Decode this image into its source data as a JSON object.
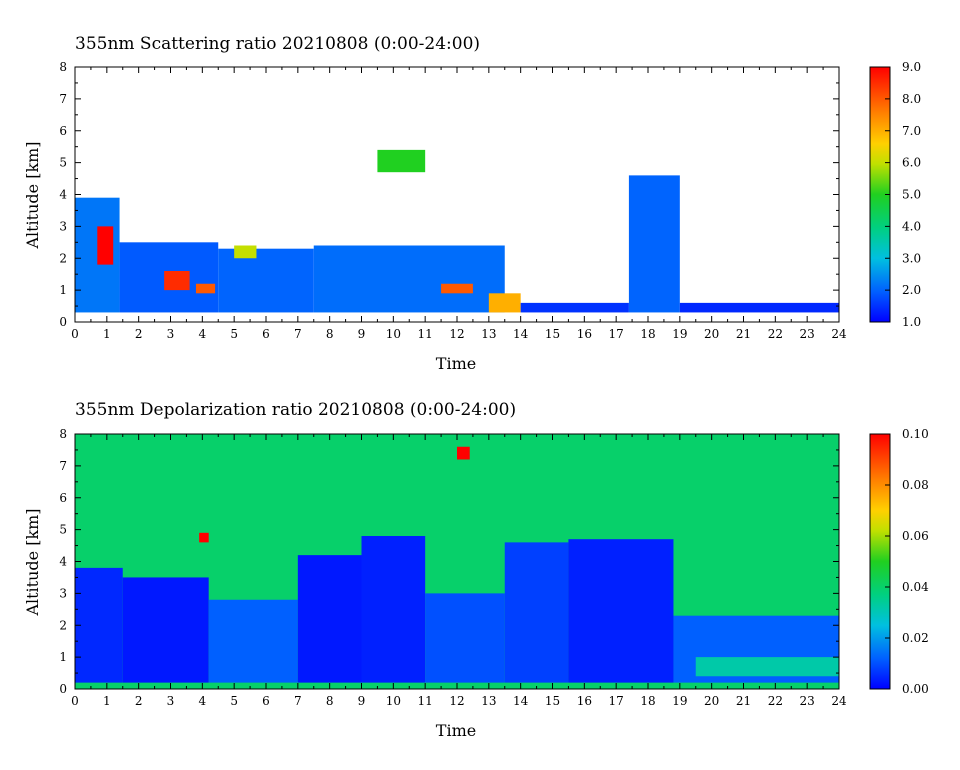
{
  "chart_data": [
    {
      "type": "heatmap",
      "title": "355nm Scattering ratio  20210808 (0:00-24:00)",
      "xlabel": "Time",
      "ylabel": "Altitude [km]",
      "xlim": [
        0,
        24
      ],
      "ylim": [
        0,
        8
      ],
      "x_ticks": [
        "0",
        "1",
        "2",
        "3",
        "4",
        "5",
        "6",
        "7",
        "8",
        "9",
        "10",
        "11",
        "12",
        "13",
        "14",
        "15",
        "16",
        "17",
        "18",
        "19",
        "20",
        "21",
        "22",
        "23",
        "24"
      ],
      "y_ticks": [
        "0",
        "1",
        "2",
        "3",
        "4",
        "5",
        "6",
        "7",
        "8"
      ],
      "colorbar": {
        "range": [
          1.0,
          9.0
        ],
        "ticks": [
          "1.0",
          "2.0",
          "3.0",
          "4.0",
          "5.0",
          "6.0",
          "7.0",
          "8.0",
          "9.0"
        ]
      },
      "background_value": "no data (white)",
      "regions": [
        {
          "t0": 0.0,
          "t1": 1.4,
          "z0": 0.3,
          "z1": 3.9,
          "value": 2.2
        },
        {
          "t0": 0.7,
          "t1": 1.2,
          "z0": 1.8,
          "z1": 3.0,
          "value": 9.0
        },
        {
          "t0": 1.4,
          "t1": 4.5,
          "z0": 0.3,
          "z1": 2.5,
          "value": 1.9
        },
        {
          "t0": 2.8,
          "t1": 3.6,
          "z0": 1.0,
          "z1": 1.6,
          "value": 8.5
        },
        {
          "t0": 3.8,
          "t1": 4.4,
          "z0": 0.9,
          "z1": 1.2,
          "value": 8.0
        },
        {
          "t0": 4.5,
          "t1": 7.5,
          "z0": 0.3,
          "z1": 2.3,
          "value": 2.0
        },
        {
          "t0": 5.0,
          "t1": 5.7,
          "z0": 2.0,
          "z1": 2.4,
          "value": 6.0
        },
        {
          "t0": 7.5,
          "t1": 13.5,
          "z0": 0.3,
          "z1": 2.4,
          "value": 2.1
        },
        {
          "t0": 9.5,
          "t1": 11.0,
          "z0": 4.7,
          "z1": 5.4,
          "value": 5.0
        },
        {
          "t0": 11.5,
          "t1": 12.5,
          "z0": 0.9,
          "z1": 1.2,
          "value": 8.0
        },
        {
          "t0": 13.0,
          "t1": 14.0,
          "z0": 0.3,
          "z1": 0.9,
          "value": 7.0
        },
        {
          "t0": 14.0,
          "t1": 17.4,
          "z0": 0.3,
          "z1": 0.6,
          "value": 1.5
        },
        {
          "t0": 17.4,
          "t1": 19.0,
          "z0": 0.3,
          "z1": 4.6,
          "value": 2.0
        },
        {
          "t0": 19.0,
          "t1": 24.0,
          "z0": 0.3,
          "z1": 0.6,
          "value": 1.4
        }
      ]
    },
    {
      "type": "heatmap",
      "title": "355nm Depolarization ratio  20210808 (0:00-24:00)",
      "xlabel": "Time",
      "ylabel": "Altitude [km]",
      "xlim": [
        0,
        24
      ],
      "ylim": [
        0,
        8
      ],
      "x_ticks": [
        "0",
        "1",
        "2",
        "3",
        "4",
        "5",
        "6",
        "7",
        "8",
        "9",
        "10",
        "11",
        "12",
        "13",
        "14",
        "15",
        "16",
        "17",
        "18",
        "19",
        "20",
        "21",
        "22",
        "23",
        "24"
      ],
      "y_ticks": [
        "0",
        "1",
        "2",
        "3",
        "4",
        "5",
        "6",
        "7",
        "8"
      ],
      "colorbar": {
        "range": [
          0.0,
          0.1
        ],
        "ticks": [
          "0.00",
          "0.02",
          "0.04",
          "0.06",
          "0.08",
          "0.10"
        ]
      },
      "background_value": 0.04,
      "regions": [
        {
          "t0": 0.0,
          "t1": 1.5,
          "z0": 0.2,
          "z1": 3.8,
          "value": 0.005
        },
        {
          "t0": 1.5,
          "t1": 4.2,
          "z0": 0.2,
          "z1": 3.5,
          "value": 0.003
        },
        {
          "t0": 4.2,
          "t1": 7.0,
          "z0": 0.2,
          "z1": 2.8,
          "value": 0.012
        },
        {
          "t0": 7.0,
          "t1": 9.0,
          "z0": 0.2,
          "z1": 4.2,
          "value": 0.003
        },
        {
          "t0": 9.0,
          "t1": 11.0,
          "z0": 0.2,
          "z1": 4.8,
          "value": 0.004
        },
        {
          "t0": 11.0,
          "t1": 13.5,
          "z0": 0.2,
          "z1": 3.0,
          "value": 0.01
        },
        {
          "t0": 13.5,
          "t1": 15.5,
          "z0": 0.2,
          "z1": 4.6,
          "value": 0.008
        },
        {
          "t0": 15.5,
          "t1": 18.8,
          "z0": 0.2,
          "z1": 4.7,
          "value": 0.004
        },
        {
          "t0": 18.8,
          "t1": 24.0,
          "z0": 0.2,
          "z1": 2.3,
          "value": 0.012
        },
        {
          "t0": 19.5,
          "t1": 24.0,
          "z0": 0.4,
          "z1": 1.0,
          "value": 0.032
        },
        {
          "t0": 12.0,
          "t1": 12.4,
          "z0": 7.2,
          "z1": 7.6,
          "value": 0.1
        },
        {
          "t0": 3.9,
          "t1": 4.2,
          "z0": 4.6,
          "z1": 4.9,
          "value": 0.1
        }
      ]
    }
  ]
}
